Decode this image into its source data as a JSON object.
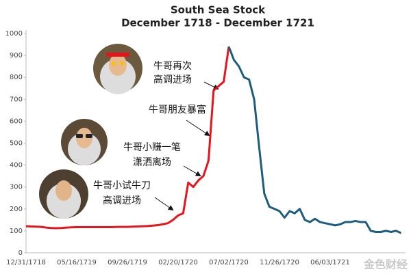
{
  "chart_data": {
    "type": "line",
    "title": "South Sea Stock",
    "subtitle": "December 1718 - December 1721",
    "categories": [
      "12/31/1718",
      null,
      null,
      null,
      null,
      null,
      null,
      null,
      null,
      null,
      "05/16/1719",
      null,
      null,
      null,
      null,
      null,
      null,
      null,
      null,
      null,
      "09/26/1719",
      null,
      null,
      null,
      null,
      null,
      null,
      null,
      null,
      null,
      "02/20/1720",
      null,
      null,
      null,
      null,
      null,
      null,
      null,
      null,
      null,
      "07/02/1720",
      null,
      null,
      null,
      null,
      null,
      null,
      null,
      null,
      null,
      "11/26/1720",
      null,
      null,
      null,
      null,
      null,
      null,
      null,
      null,
      null,
      "06/03/1721",
      null,
      null,
      null,
      null,
      null,
      null,
      null,
      null,
      null,
      null,
      null,
      null,
      null,
      null
    ],
    "series": [
      {
        "color": "#e8141b",
        "values": [
          121,
          120,
          119,
          118,
          115,
          113,
          112,
          113,
          115,
          116,
          117,
          117,
          117,
          117,
          117,
          117,
          117,
          117,
          118,
          118,
          118,
          119,
          120,
          121,
          122,
          124,
          126,
          130,
          135,
          150,
          170,
          180,
          320,
          300,
          330,
          350,
          420,
          740,
          760,
          780,
          940,
          null,
          null,
          null,
          null,
          null,
          null,
          null,
          null,
          null,
          null,
          null,
          null,
          null,
          null,
          null,
          null,
          null,
          null,
          null,
          null,
          null,
          null,
          null,
          null,
          null,
          null,
          null,
          null,
          null,
          null,
          null,
          null,
          null,
          null
        ]
      },
      {
        "color": "#1d5c7e",
        "values": [
          null,
          null,
          null,
          null,
          null,
          null,
          null,
          null,
          null,
          null,
          null,
          null,
          null,
          null,
          null,
          null,
          null,
          null,
          null,
          null,
          null,
          null,
          null,
          null,
          null,
          null,
          null,
          null,
          null,
          null,
          null,
          null,
          null,
          null,
          null,
          null,
          null,
          null,
          null,
          null,
          940,
          880,
          850,
          800,
          790,
          700,
          480,
          270,
          210,
          200,
          190,
          160,
          190,
          180,
          200,
          150,
          140,
          155,
          140,
          135,
          130,
          125,
          130,
          140,
          140,
          145,
          140,
          140,
          100,
          95,
          95,
          100,
          95,
          100,
          90
        ]
      }
    ],
    "ylim": [
      0,
      1000
    ],
    "yticks": [
      0,
      100,
      200,
      300,
      400,
      500,
      600,
      700,
      800,
      900,
      1000
    ],
    "grid": false,
    "annotations": [
      {
        "lines": [
          "牛哥再次",
          "高调进场"
        ]
      },
      {
        "lines": [
          "牛哥朋友暴富"
        ]
      },
      {
        "lines": [
          "牛哥小赚一笔",
          "潇洒离场"
        ]
      },
      {
        "lines": [
          "牛哥小试牛刀",
          "高调进场"
        ]
      }
    ],
    "watermark": "金色财经"
  }
}
